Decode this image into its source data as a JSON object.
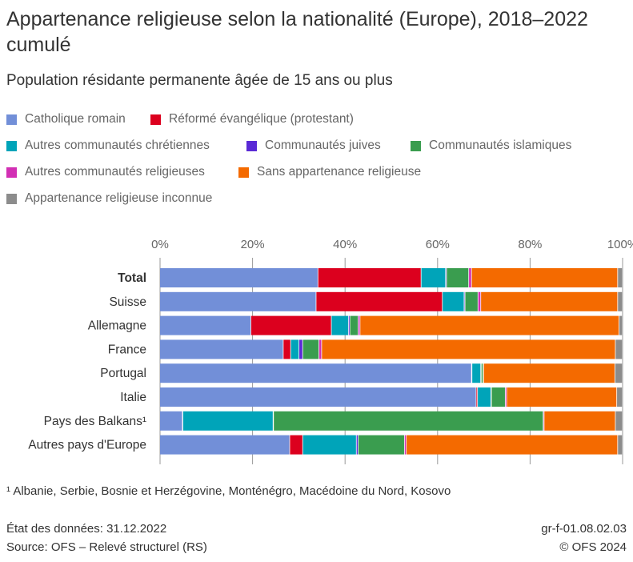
{
  "title": "Appartenance religieuse selon la nationalité (Europe), 2018–2022 cumulé",
  "subtitle": "Population résidante permanente âgée de 15 ans ou plus",
  "footnote": "¹ Albanie, Serbie, Bosnie et Herzégovine, Monténégro, Macédoine du Nord, Kosovo",
  "footer": {
    "data_state": "État des données: 31.12.2022",
    "source": "Source: OFS – Relevé structurel (RS)",
    "code": "gr-f-01.08.02.03",
    "copyright": "© OFS 2024"
  },
  "chart_data": {
    "type": "bar",
    "orientation": "horizontal",
    "stacked": true,
    "xlim": [
      0,
      100
    ],
    "x_ticks": [
      "0%",
      "20%",
      "40%",
      "60%",
      "80%",
      "100%"
    ],
    "grid": true,
    "legend_placement": "top",
    "categories": [
      "Total",
      "Suisse",
      "Allemagne",
      "France",
      "Portugal",
      "Italie",
      "Pays des Balkans¹",
      "Autres pays d'Europe"
    ],
    "series": [
      {
        "name": "Catholique romain",
        "color": "#728fd8",
        "values": [
          34.2,
          33.8,
          19.7,
          26.7,
          67.4,
          68.4,
          4.9,
          28.1
        ]
      },
      {
        "name": "Réformé évangélique (protestant)",
        "color": "#dc001e",
        "values": [
          22.3,
          27.3,
          17.4,
          1.6,
          0.1,
          0.3,
          0.1,
          2.8
        ]
      },
      {
        "name": "Autres communautés chrétiennes",
        "color": "#00a4b9",
        "values": [
          5.3,
          4.7,
          3.7,
          1.8,
          1.9,
          2.9,
          19.5,
          11.6
        ]
      },
      {
        "name": "Communautés juives",
        "color": "#5a2ad6",
        "values": [
          0.2,
          0.2,
          0.3,
          0.8,
          0.1,
          0.1,
          0.1,
          0.4
        ]
      },
      {
        "name": "Communautés islamiques",
        "color": "#3a9d4f",
        "values": [
          4.8,
          2.8,
          1.8,
          3.5,
          0.4,
          3.0,
          58.3,
          10.0
        ]
      },
      {
        "name": "Autres communautés religieuses",
        "color": "#d22fb4",
        "values": [
          0.6,
          0.6,
          0.4,
          0.6,
          0.1,
          0.3,
          0.2,
          0.4
        ]
      },
      {
        "name": "Sans appartenance religieuse",
        "color": "#f46a00",
        "values": [
          31.6,
          29.6,
          56.0,
          63.5,
          28.4,
          23.8,
          15.4,
          45.7
        ]
      },
      {
        "name": "Appartenance religieuse inconnue",
        "color": "#8c8c8c",
        "values": [
          1.0,
          1.0,
          0.7,
          1.5,
          1.6,
          1.2,
          1.5,
          1.0
        ]
      }
    ]
  }
}
